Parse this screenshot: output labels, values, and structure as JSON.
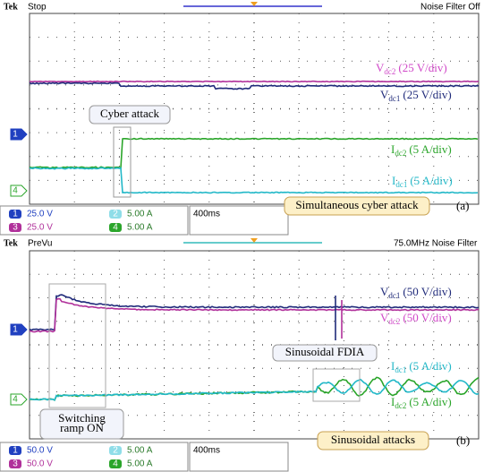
{
  "panels": [
    {
      "header": {
        "brand": "Tek",
        "status": "Stop",
        "right": "Noise Filter Off"
      },
      "markers": [
        "1",
        "4"
      ],
      "labels": [
        {
          "main": "V",
          "sub": "dc2",
          "unit": "(25 V/div)"
        },
        {
          "main": "V",
          "sub": "dc1",
          "unit": "(25 V/div)"
        },
        {
          "main": "I",
          "sub": "dc2",
          "unit": "(5 A/div)"
        },
        {
          "main": "I",
          "sub": "dc1",
          "unit": "(5 A/div)"
        }
      ],
      "callouts": [
        {
          "lines": [
            "Cyber attack"
          ]
        }
      ],
      "channels": [
        {
          "num": "1",
          "setting": "25.0 V"
        },
        {
          "num": "2",
          "setting": "5.00 A"
        },
        {
          "num": "3",
          "setting": "25.0 V"
        },
        {
          "num": "4",
          "setting": "5.00 A"
        }
      ],
      "timebase": "400ms",
      "caption": "Simultaneous cyber attack",
      "tag": "(a)"
    },
    {
      "header": {
        "brand": "Tek",
        "status": "PreVu",
        "right": "75.0MHz  Noise Filter"
      },
      "markers": [
        "1",
        "4"
      ],
      "labels": [
        {
          "main": "V",
          "sub": "dc1",
          "unit": "(50 V/div)"
        },
        {
          "main": "V",
          "sub": "dc2",
          "unit": "(50 V/div)"
        },
        {
          "main": "I",
          "sub": "dc1",
          "unit": "(5 A/div)"
        },
        {
          "main": "I",
          "sub": "dc2",
          "unit": "(5 A/div)"
        }
      ],
      "callouts": [
        {
          "lines": [
            "Sinusoidal FDIA"
          ]
        },
        {
          "lines": [
            "Switching",
            "ramp ON"
          ]
        }
      ],
      "channels": [
        {
          "num": "1",
          "setting": "50.0 V"
        },
        {
          "num": "2",
          "setting": "5.00 A"
        },
        {
          "num": "3",
          "setting": "50.0 V"
        },
        {
          "num": "4",
          "setting": "5.00 A"
        }
      ],
      "timebase": "400ms",
      "caption": "Sinusoidal attacks",
      "tag": "(b)"
    }
  ]
}
